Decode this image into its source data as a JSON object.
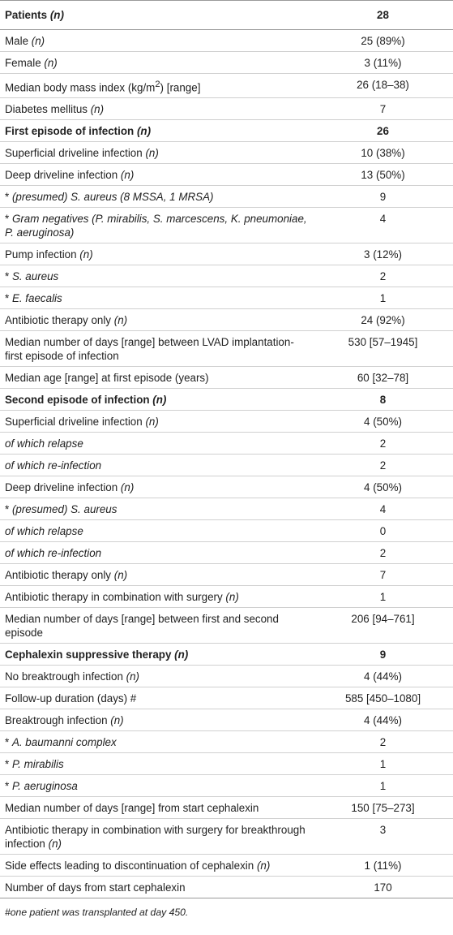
{
  "table": {
    "header": {
      "label": "Patients",
      "n_marker": "(n)",
      "value": "28"
    },
    "rows": [
      {
        "pre": "Male ",
        "it": "(n)",
        "post": "",
        "value": "25 (89%)"
      },
      {
        "pre": "Female ",
        "it": "(n)",
        "post": "",
        "value": "3 (11%)"
      },
      {
        "pre": "Median body mass index (kg/m",
        "sup": "2",
        "post": ") [range]",
        "value": "26 (18–38)"
      },
      {
        "pre": "Diabetes mellitus ",
        "it": "(n)",
        "post": "",
        "value": "7"
      },
      {
        "bold": true,
        "pre": "First episode of infection ",
        "it": "(n)",
        "post": "",
        "value": "26"
      },
      {
        "pre": "Superficial driveline infection ",
        "it": "(n)",
        "post": "",
        "value": "10 (38%)"
      },
      {
        "pre": "Deep driveline infection ",
        "it": "(n)",
        "post": "",
        "value": "13 (50%)"
      },
      {
        "pre": "* ",
        "it": "(presumed) S. aureus (8 MSSA, 1 MRSA)",
        "post": "",
        "value": "9"
      },
      {
        "pre": "* ",
        "it": "Gram negatives (P. mirabilis, S. marcescens, K. pneumoniae, P. aeruginosa)",
        "post": "",
        "value": "4"
      },
      {
        "pre": "Pump infection ",
        "it": "(n)",
        "post": "",
        "value": "3 (12%)"
      },
      {
        "pre": "* ",
        "it": "S. aureus",
        "post": "",
        "value": "2"
      },
      {
        "pre": "* ",
        "it": "E. faecalis",
        "post": "",
        "value": "1"
      },
      {
        "pre": "Antibiotic therapy only ",
        "it": "(n)",
        "post": "",
        "value": "24 (92%)"
      },
      {
        "pre": "Median number of days [range] between LVAD implantation-first episode of infection",
        "it": "",
        "post": "",
        "value": "530 [57–1945]"
      },
      {
        "pre": "Median age [range] at first episode (years)",
        "it": "",
        "post": "",
        "value": "60 [32–78]"
      },
      {
        "bold": true,
        "pre": "Second episode of infection ",
        "it": "(n)",
        "post": "",
        "value": "8"
      },
      {
        "pre": "Superficial driveline infection ",
        "it": "(n)",
        "post": "",
        "value": "4 (50%)"
      },
      {
        "pre": "",
        "it": "of which relapse",
        "post": "",
        "value": "2"
      },
      {
        "pre": "",
        "it": "of which re-infection",
        "post": "",
        "value": "2"
      },
      {
        "pre": "Deep driveline infection ",
        "it": "(n)",
        "post": "",
        "value": "4 (50%)"
      },
      {
        "pre": "* ",
        "it": "(presumed) S. aureus",
        "post": "",
        "value": "4"
      },
      {
        "pre": "",
        "it": "of which relapse",
        "post": "",
        "value": "0"
      },
      {
        "pre": "",
        "it": "of which re-infection",
        "post": "",
        "value": "2"
      },
      {
        "pre": "Antibiotic therapy only ",
        "it": "(n)",
        "post": "",
        "value": "7"
      },
      {
        "pre": "Antibiotic therapy in combination with surgery ",
        "it": "(n)",
        "post": "",
        "value": "1"
      },
      {
        "pre": "Median number of days [range] between first and second episode",
        "it": "",
        "post": "",
        "value": "206 [94–761]"
      },
      {
        "bold": true,
        "pre": "Cephalexin suppressive therapy ",
        "it": "(n)",
        "post": "",
        "value": "9"
      },
      {
        "pre": "No breaktrough infection ",
        "it": "(n)",
        "post": "",
        "value": "4 (44%)"
      },
      {
        "pre": "Follow-up duration (days) #",
        "it": "",
        "post": "",
        "value": "585 [450–1080]"
      },
      {
        "pre": "Breaktrough infection ",
        "it": "(n)",
        "post": "",
        "value": "4 (44%)"
      },
      {
        "pre": "* ",
        "it": "A. baumanni complex",
        "post": "",
        "value": "2"
      },
      {
        "pre": "* ",
        "it": "P. mirabilis",
        "post": "",
        "value": "1"
      },
      {
        "pre": "* ",
        "it": "P. aeruginosa",
        "post": "",
        "value": "1"
      },
      {
        "pre": "Median number of days [range] from start cephalexin",
        "it": "",
        "post": "",
        "value": "150 [75–273]"
      },
      {
        "pre": "Antibiotic therapy in combination with surgery for breakthrough infection ",
        "it": "(n)",
        "post": "",
        "value": "3"
      },
      {
        "pre": "Side effects leading to discontinuation of cephalexin ",
        "it": "(n)",
        "post": "",
        "value": "1 (11%)"
      },
      {
        "pre": "Number of days from start cephalexin",
        "it": "",
        "post": "",
        "value": "170"
      }
    ],
    "footnote": "#one patient was transplanted at day 450."
  }
}
